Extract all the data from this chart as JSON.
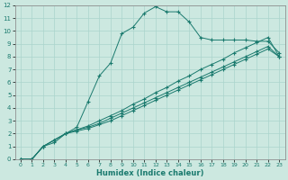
{
  "xlabel": "Humidex (Indice chaleur)",
  "bg_color": "#cce8e0",
  "line_color": "#1a7a6e",
  "grid_color": "#aad4cc",
  "xlim": [
    -0.5,
    23.5
  ],
  "ylim": [
    0,
    12
  ],
  "line1_x": [
    0,
    1,
    2,
    3,
    4,
    5,
    6,
    7,
    8,
    9,
    10,
    11,
    12,
    13,
    14,
    15,
    16,
    17,
    18,
    19,
    20,
    21,
    22,
    23
  ],
  "line1_y": [
    0,
    0,
    1.0,
    1.3,
    2.0,
    2.5,
    4.5,
    6.5,
    7.5,
    9.8,
    10.3,
    11.4,
    11.9,
    11.5,
    11.5,
    10.7,
    9.5,
    9.3,
    9.3,
    9.3,
    9.3,
    9.2,
    9.2,
    8.3
  ],
  "line2_x": [
    0,
    1,
    2,
    3,
    4,
    5,
    6,
    7,
    8,
    9,
    10,
    11,
    12,
    13,
    14,
    15,
    16,
    17,
    18,
    19,
    20,
    21,
    22,
    23
  ],
  "line2_y": [
    0,
    0,
    1.0,
    1.5,
    2.0,
    2.3,
    2.6,
    3.0,
    3.4,
    3.8,
    4.3,
    4.7,
    5.2,
    5.6,
    6.1,
    6.5,
    7.0,
    7.4,
    7.8,
    8.3,
    8.7,
    9.1,
    9.5,
    8.0
  ],
  "line3_x": [
    0,
    1,
    2,
    3,
    4,
    5,
    6,
    7,
    8,
    9,
    10,
    11,
    12,
    13,
    14,
    15,
    16,
    17,
    18,
    19,
    20,
    21,
    22,
    23
  ],
  "line3_y": [
    0,
    0,
    1.0,
    1.5,
    2.0,
    2.3,
    2.5,
    2.8,
    3.2,
    3.6,
    4.0,
    4.4,
    4.8,
    5.2,
    5.6,
    6.0,
    6.4,
    6.8,
    7.2,
    7.6,
    8.0,
    8.4,
    8.8,
    8.0
  ],
  "line4_x": [
    0,
    1,
    2,
    3,
    4,
    5,
    6,
    7,
    8,
    9,
    10,
    11,
    12,
    13,
    14,
    15,
    16,
    17,
    18,
    19,
    20,
    21,
    22,
    23
  ],
  "line4_y": [
    0,
    0,
    1.0,
    1.5,
    2.0,
    2.2,
    2.4,
    2.7,
    3.0,
    3.4,
    3.8,
    4.2,
    4.6,
    5.0,
    5.4,
    5.8,
    6.2,
    6.6,
    7.0,
    7.4,
    7.8,
    8.2,
    8.6,
    8.0
  ],
  "ytick_labels": [
    "0",
    "1",
    "2",
    "3",
    "4",
    "5",
    "6",
    "7",
    "8",
    "9",
    "10",
    "11",
    "12"
  ],
  "xtick_labels": [
    "0",
    "1",
    "2",
    "3",
    "4",
    "5",
    "6",
    "7",
    "8",
    "9",
    "10",
    "11",
    "12",
    "13",
    "14",
    "15",
    "16",
    "17",
    "18",
    "19",
    "20",
    "21",
    "22",
    "23"
  ]
}
